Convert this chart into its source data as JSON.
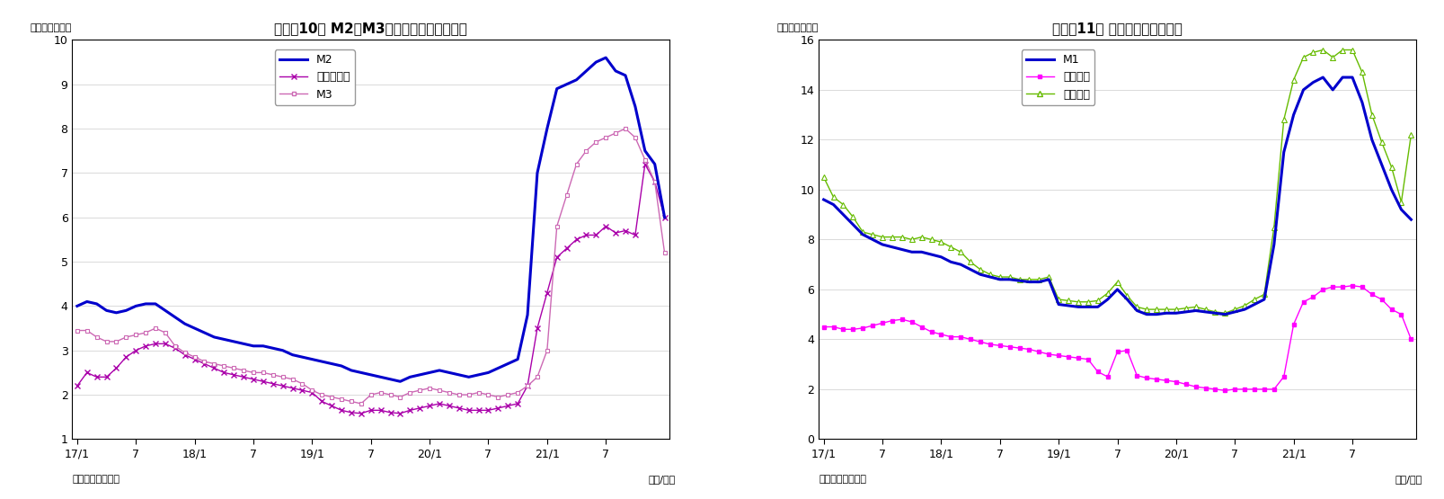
{
  "chart1": {
    "title": "（図表10） M2、M3、広義流動性の伸び率",
    "ylabel": "（前年比、％）",
    "xlabel_right": "（年/月）",
    "source": "（資料）日本銀行",
    "ylim": [
      1,
      10
    ],
    "yticks": [
      1,
      2,
      3,
      4,
      5,
      6,
      7,
      8,
      9,
      10
    ],
    "xtick_positions": [
      0,
      6,
      12,
      18,
      24,
      30,
      36,
      42,
      48,
      54
    ],
    "xtick_labels": [
      "17/1",
      "7",
      "18/1",
      "7",
      "19/1",
      "7",
      "20/1",
      "7",
      "21/1",
      "7"
    ],
    "M2": [
      4.0,
      4.1,
      4.05,
      3.9,
      3.85,
      3.9,
      4.0,
      4.05,
      4.05,
      3.9,
      3.75,
      3.6,
      3.5,
      3.4,
      3.3,
      3.25,
      3.2,
      3.15,
      3.1,
      3.1,
      3.05,
      3.0,
      2.9,
      2.85,
      2.8,
      2.75,
      2.7,
      2.65,
      2.55,
      2.5,
      2.45,
      2.4,
      2.35,
      2.3,
      2.4,
      2.45,
      2.5,
      2.55,
      2.5,
      2.45,
      2.4,
      2.45,
      2.5,
      2.6,
      2.7,
      2.8,
      3.8,
      7.0,
      8.0,
      8.9,
      9.0,
      9.1,
      9.3,
      9.5,
      9.6,
      9.3,
      9.2,
      8.5,
      7.5,
      7.2,
      6.0
    ],
    "M3": [
      3.45,
      3.45,
      3.3,
      3.2,
      3.2,
      3.3,
      3.35,
      3.4,
      3.5,
      3.4,
      3.1,
      2.95,
      2.85,
      2.75,
      2.7,
      2.65,
      2.6,
      2.55,
      2.5,
      2.5,
      2.45,
      2.4,
      2.35,
      2.25,
      2.1,
      2.0,
      1.95,
      1.9,
      1.85,
      1.8,
      2.0,
      2.05,
      2.0,
      1.95,
      2.05,
      2.1,
      2.15,
      2.1,
      2.05,
      2.0,
      2.0,
      2.05,
      2.0,
      1.95,
      2.0,
      2.05,
      2.2,
      2.4,
      3.0,
      5.8,
      6.5,
      7.2,
      7.5,
      7.7,
      7.8,
      7.9,
      8.0,
      7.8,
      7.3,
      6.8,
      5.2
    ],
    "kouki": [
      2.2,
      2.5,
      2.4,
      2.4,
      2.6,
      2.85,
      3.0,
      3.1,
      3.15,
      3.15,
      3.05,
      2.9,
      2.8,
      2.7,
      2.6,
      2.5,
      2.45,
      2.4,
      2.35,
      2.3,
      2.25,
      2.2,
      2.15,
      2.1,
      2.05,
      1.85,
      1.75,
      1.65,
      1.6,
      1.58,
      1.65,
      1.65,
      1.6,
      1.58,
      1.65,
      1.7,
      1.75,
      1.8,
      1.75,
      1.7,
      1.65,
      1.65,
      1.65,
      1.7,
      1.75,
      1.8,
      2.2,
      3.5,
      4.3,
      5.1,
      5.3,
      5.5,
      5.6,
      5.6,
      5.8,
      5.65,
      5.7,
      5.6,
      7.2,
      6.8,
      6.0
    ],
    "M2_color": "#0000CC",
    "M3_color": "#CC69B4",
    "kouki_color": "#AA00AA"
  },
  "chart2": {
    "title": "（図表11） 現金・預金の伸び率",
    "ylabel": "（前年比、％）",
    "xlabel_right": "（年/月）",
    "source": "（資料）日本銀行",
    "ylim": [
      0,
      16
    ],
    "yticks": [
      0,
      2,
      4,
      6,
      8,
      10,
      12,
      14,
      16
    ],
    "xtick_positions": [
      0,
      6,
      12,
      18,
      24,
      30,
      36,
      42,
      48,
      54
    ],
    "xtick_labels": [
      "17/1",
      "7",
      "18/1",
      "7",
      "19/1",
      "7",
      "20/1",
      "7",
      "21/1",
      "7"
    ],
    "M1": [
      9.6,
      9.4,
      9.0,
      8.6,
      8.2,
      8.0,
      7.8,
      7.7,
      7.6,
      7.5,
      7.5,
      7.4,
      7.3,
      7.1,
      7.0,
      6.8,
      6.6,
      6.5,
      6.4,
      6.4,
      6.35,
      6.3,
      6.3,
      6.4,
      5.4,
      5.35,
      5.3,
      5.3,
      5.3,
      5.6,
      6.0,
      5.6,
      5.15,
      5.0,
      5.0,
      5.05,
      5.05,
      5.1,
      5.15,
      5.1,
      5.05,
      5.0,
      5.1,
      5.2,
      5.4,
      5.6,
      7.8,
      11.5,
      13.0,
      14.0,
      14.3,
      14.5,
      14.0,
      14.5,
      14.5,
      13.5,
      12.0,
      11.0,
      10.0,
      9.2,
      8.8
    ],
    "genkin": [
      4.5,
      4.5,
      4.4,
      4.4,
      4.45,
      4.55,
      4.65,
      4.75,
      4.8,
      4.7,
      4.5,
      4.3,
      4.2,
      4.1,
      4.1,
      4.0,
      3.9,
      3.8,
      3.75,
      3.7,
      3.65,
      3.6,
      3.5,
      3.4,
      3.35,
      3.3,
      3.25,
      3.2,
      2.7,
      2.5,
      3.5,
      3.55,
      2.55,
      2.45,
      2.4,
      2.35,
      2.3,
      2.2,
      2.1,
      2.05,
      2.0,
      1.95,
      2.0,
      2.0,
      2.0,
      2.0,
      2.0,
      2.5,
      4.6,
      5.5,
      5.7,
      6.0,
      6.1,
      6.1,
      6.15,
      6.1,
      5.8,
      5.6,
      5.2,
      5.0,
      4.0
    ],
    "yokin": [
      10.5,
      9.7,
      9.4,
      8.9,
      8.3,
      8.2,
      8.1,
      8.1,
      8.1,
      8.0,
      8.1,
      8.0,
      7.9,
      7.7,
      7.5,
      7.1,
      6.8,
      6.6,
      6.5,
      6.5,
      6.4,
      6.4,
      6.4,
      6.5,
      5.6,
      5.55,
      5.5,
      5.5,
      5.55,
      5.85,
      6.3,
      5.75,
      5.3,
      5.2,
      5.2,
      5.2,
      5.2,
      5.25,
      5.3,
      5.2,
      5.1,
      5.05,
      5.2,
      5.35,
      5.6,
      5.8,
      8.5,
      12.8,
      14.4,
      15.3,
      15.5,
      15.6,
      15.3,
      15.6,
      15.6,
      14.7,
      13.0,
      11.9,
      10.9,
      9.5,
      12.2
    ],
    "M1_color": "#0000CC",
    "genkin_color": "#FF00FF",
    "yokin_color": "#66BB00"
  },
  "bg_color": "#FFFFFF",
  "border_color": "#000000",
  "grid_color": "#CCCCCC",
  "n_points": 61
}
